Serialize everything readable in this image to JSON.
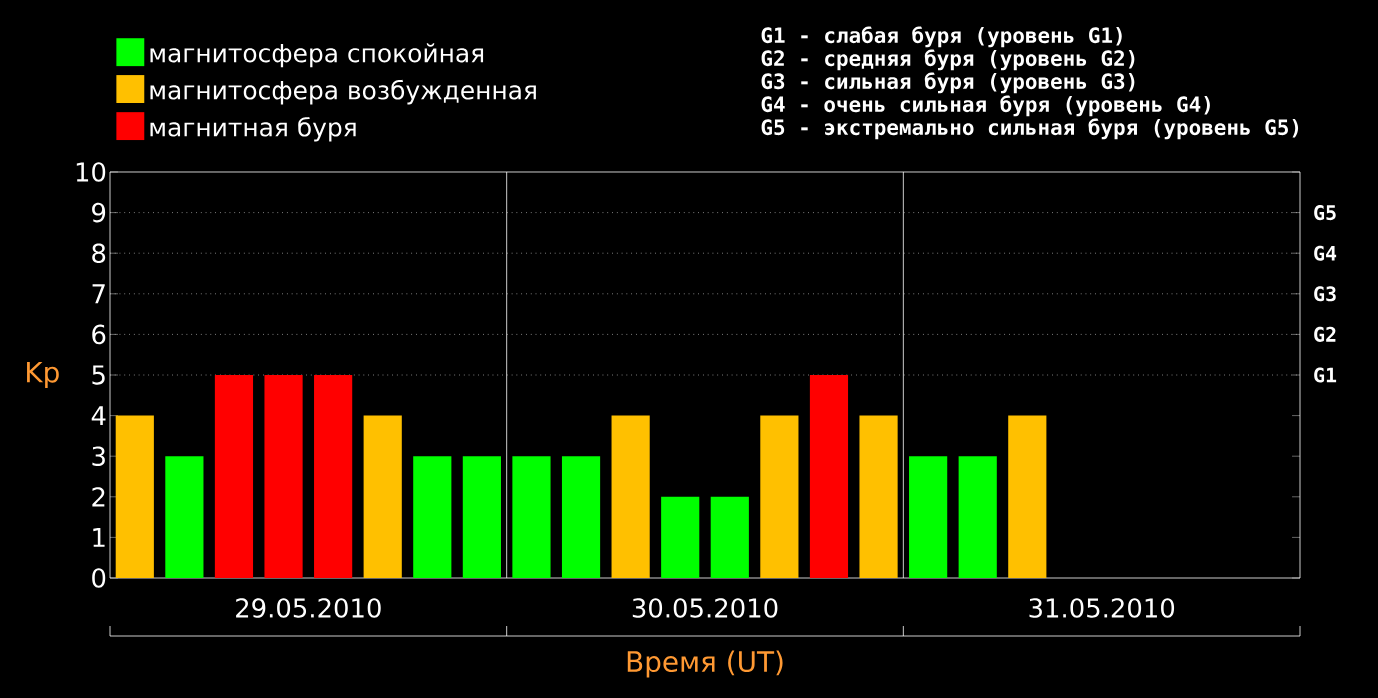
{
  "chart_data": {
    "type": "bar",
    "xlabel": "Время (UT)",
    "ylabel": "Kp",
    "categories": [
      null,
      null,
      null,
      null,
      null,
      null,
      null,
      null,
      null,
      null,
      null,
      null,
      null,
      null,
      null,
      null,
      null,
      null,
      null,
      null,
      null,
      null,
      null,
      null
    ],
    "series": [
      {
        "name": "магнитосфера спокойная",
        "color": "#00ff00",
        "values": [
          null,
          3,
          null,
          null,
          null,
          null,
          3,
          3,
          3,
          3,
          null,
          2,
          2,
          null,
          null,
          null,
          3,
          3,
          null,
          null,
          null,
          null,
          null,
          null
        ]
      },
      {
        "name": "магнитосфера возбужденная",
        "color": "#ffc000",
        "values": [
          4,
          null,
          null,
          null,
          null,
          4,
          null,
          null,
          null,
          null,
          4,
          null,
          null,
          4,
          null,
          4,
          null,
          null,
          4,
          null,
          null,
          null,
          null,
          null
        ]
      },
      {
        "name": "магнитная буря",
        "color": "#ff0000",
        "values": [
          null,
          null,
          5,
          5,
          5,
          null,
          null,
          null,
          null,
          null,
          null,
          null,
          null,
          null,
          5,
          null,
          null,
          null,
          null,
          null,
          null,
          null,
          null,
          null
        ]
      }
    ],
    "ylim": [
      0,
      10
    ],
    "yticks": [
      0,
      1,
      2,
      3,
      4,
      5,
      6,
      7,
      8,
      9,
      10
    ],
    "ref_lines": [
      {
        "axis": "y",
        "value": 5,
        "label": "G1",
        "line_style": "dotted",
        "color": "#c0c0c0"
      },
      {
        "axis": "y",
        "value": 6,
        "label": "G2",
        "line_style": "dotted",
        "color": "#c0c0c0"
      },
      {
        "axis": "y",
        "value": 7,
        "label": "G3",
        "line_style": "dotted",
        "color": "#c0c0c0"
      },
      {
        "axis": "y",
        "value": 8,
        "label": "G4",
        "line_style": "dotted",
        "color": "#c0c0c0"
      },
      {
        "axis": "y",
        "value": 9,
        "label": "G5",
        "line_style": "dotted",
        "color": "#c0c0c0"
      }
    ],
    "annotations": [
      "G1 - слабая буря (уровень G1)",
      "G2 - средняя буря (уровень G2)",
      "G3 - сильная буря (уровень G3)",
      "G4 - очень сильная буря (уровень G4)",
      "G5 - экстремально сильная буря (уровень G5)",
      "29.05.2010",
      "30.05.2010",
      "31.05.2010"
    ],
    "legend": "top left"
  }
}
